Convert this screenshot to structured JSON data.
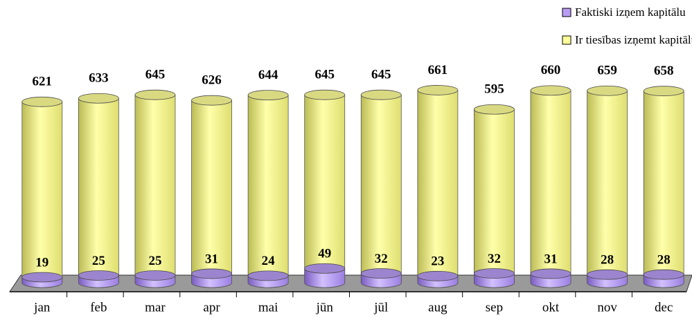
{
  "chart_data": {
    "type": "cylinder-bar",
    "categories": [
      "jan",
      "feb",
      "mar",
      "apr",
      "mai",
      "jūn",
      "jūl",
      "aug",
      "sep",
      "okt",
      "nov",
      "dec"
    ],
    "series": [
      {
        "name": "Faktiski izņem kapitālu",
        "color": "#b89cf2",
        "values": [
          19,
          25,
          25,
          31,
          24,
          49,
          32,
          23,
          32,
          31,
          28,
          28
        ]
      },
      {
        "name": "Ir tiesības izņemt kapitālu",
        "color": "#ffff99",
        "values": [
          621,
          633,
          645,
          626,
          644,
          645,
          645,
          661,
          595,
          660,
          659,
          658
        ]
      }
    ],
    "ylim": [
      0,
      700
    ]
  }
}
